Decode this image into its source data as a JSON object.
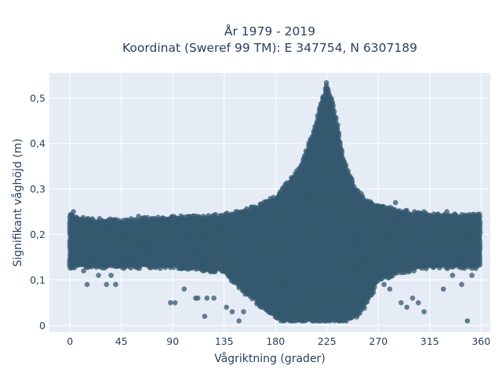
{
  "chart_data": {
    "type": "scatter",
    "title_line1": "År 1979 - 2019",
    "title_line2": "Koordinat (Sweref 99 TM): E 347754, N 6307189",
    "xlabel": "Vågriktning (grader)",
    "ylabel": "Signifikant våghöjd (m)",
    "xlim": [
      -18,
      368
    ],
    "ylim": [
      -0.015,
      0.555
    ],
    "xticks": [
      0,
      45,
      90,
      135,
      180,
      225,
      270,
      315,
      360
    ],
    "xtick_labels": [
      "0",
      "45",
      "90",
      "135",
      "180",
      "225",
      "270",
      "315",
      "360"
    ],
    "yticks": [
      0,
      0.1,
      0.2,
      0.3,
      0.4,
      0.5
    ],
    "ytick_labels": [
      "0",
      "0,1",
      "0,2",
      "0,3",
      "0,4",
      "0,5"
    ],
    "grid": true,
    "marker_color": "#34586f",
    "plot_background": "#e5ecf6",
    "envelope": {
      "x": [
        0,
        20,
        45,
        90,
        135,
        150,
        165,
        180,
        190,
        200,
        210,
        218,
        225,
        232,
        240,
        250,
        260,
        270,
        290,
        315,
        340,
        360
      ],
      "upper": [
        0.24,
        0.23,
        0.23,
        0.235,
        0.24,
        0.25,
        0.26,
        0.28,
        0.31,
        0.34,
        0.4,
        0.47,
        0.53,
        0.47,
        0.36,
        0.3,
        0.27,
        0.26,
        0.25,
        0.24,
        0.24,
        0.24
      ],
      "lower": [
        0.13,
        0.13,
        0.13,
        0.13,
        0.12,
        0.08,
        0.05,
        0.02,
        0.01,
        0.01,
        0.01,
        0.01,
        0.01,
        0.01,
        0.01,
        0.02,
        0.05,
        0.1,
        0.12,
        0.13,
        0.13,
        0.13
      ]
    },
    "outliers": [
      {
        "x": 3,
        "y": 0.25
      },
      {
        "x": 15,
        "y": 0.09
      },
      {
        "x": 12,
        "y": 0.12
      },
      {
        "x": 25,
        "y": 0.11
      },
      {
        "x": 32,
        "y": 0.09
      },
      {
        "x": 40,
        "y": 0.09
      },
      {
        "x": 36,
        "y": 0.11
      },
      {
        "x": 60,
        "y": 0.24
      },
      {
        "x": 88,
        "y": 0.05
      },
      {
        "x": 92,
        "y": 0.05
      },
      {
        "x": 100,
        "y": 0.08
      },
      {
        "x": 110,
        "y": 0.06
      },
      {
        "x": 112,
        "y": 0.06
      },
      {
        "x": 118,
        "y": 0.02
      },
      {
        "x": 120,
        "y": 0.06
      },
      {
        "x": 126,
        "y": 0.06
      },
      {
        "x": 137,
        "y": 0.04
      },
      {
        "x": 142,
        "y": 0.03
      },
      {
        "x": 148,
        "y": 0.01
      },
      {
        "x": 152,
        "y": 0.03
      },
      {
        "x": 290,
        "y": 0.05
      },
      {
        "x": 295,
        "y": 0.04
      },
      {
        "x": 300,
        "y": 0.06
      },
      {
        "x": 305,
        "y": 0.05
      },
      {
        "x": 310,
        "y": 0.03
      },
      {
        "x": 327,
        "y": 0.08
      },
      {
        "x": 335,
        "y": 0.11
      },
      {
        "x": 343,
        "y": 0.09
      },
      {
        "x": 348,
        "y": 0.01
      },
      {
        "x": 352,
        "y": 0.11
      },
      {
        "x": 330,
        "y": 0.25
      },
      {
        "x": 310,
        "y": 0.25
      },
      {
        "x": 285,
        "y": 0.27
      },
      {
        "x": 275,
        "y": 0.09
      },
      {
        "x": 280,
        "y": 0.08
      },
      {
        "x": 245,
        "y": 0.29
      }
    ]
  }
}
